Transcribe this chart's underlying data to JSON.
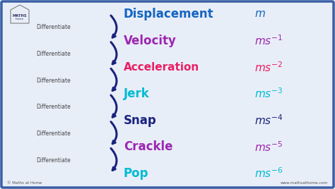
{
  "bg_color": "#e8eef8",
  "border_color": "#3a5fa5",
  "terms": [
    "Displacement",
    "Velocity",
    "Acceleration",
    "Jerk",
    "Snap",
    "Crackle",
    "Pop"
  ],
  "term_colors": [
    "#1565c0",
    "#9c27b0",
    "#e91e63",
    "#00bcd4",
    "#1a237e",
    "#9c27b0",
    "#00bcd4"
  ],
  "units": [
    "m",
    "ms^{-1}",
    "ms^{-2}",
    "ms^{-3}",
    "ms^{-4}",
    "ms^{-5}",
    "ms^{-6}"
  ],
  "unit_colors": [
    "#1565c0",
    "#9c27b0",
    "#e91e63",
    "#00bcd4",
    "#1a237e",
    "#9c27b0",
    "#00bcd4"
  ],
  "differentiate_label": "Differentiate",
  "diff_color": "#444444",
  "arrow_color": "#1a237e",
  "footer_left": "© Maths at Home",
  "footer_right": "www.mathsathome.com",
  "figsize": [
    4.74,
    2.68
  ],
  "dpi": 100
}
